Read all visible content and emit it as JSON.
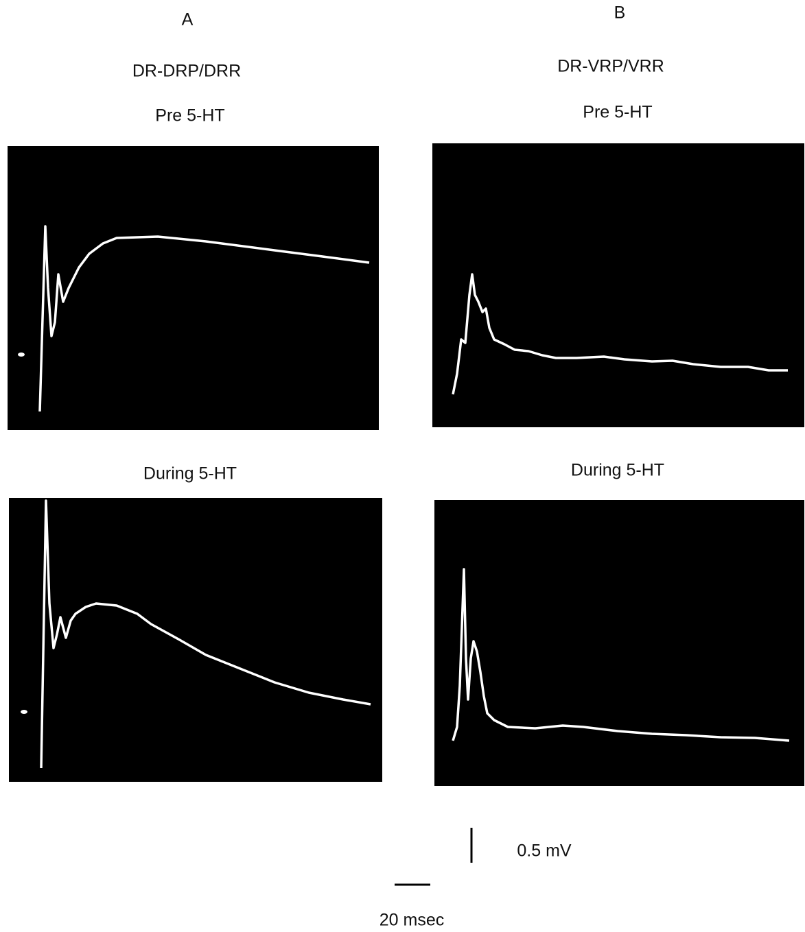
{
  "panels": [
    {
      "label": "A",
      "title": "DR-DRP/DRR",
      "conditions": [
        "Pre 5-HT",
        "During 5-HT"
      ]
    },
    {
      "label": "B",
      "title": "DR-VRP/VRR",
      "conditions": [
        "Pre 5-HT",
        "During 5-HT"
      ]
    }
  ],
  "scale_bars": {
    "voltage": "0.5 mV",
    "time": "20 msec"
  }
}
